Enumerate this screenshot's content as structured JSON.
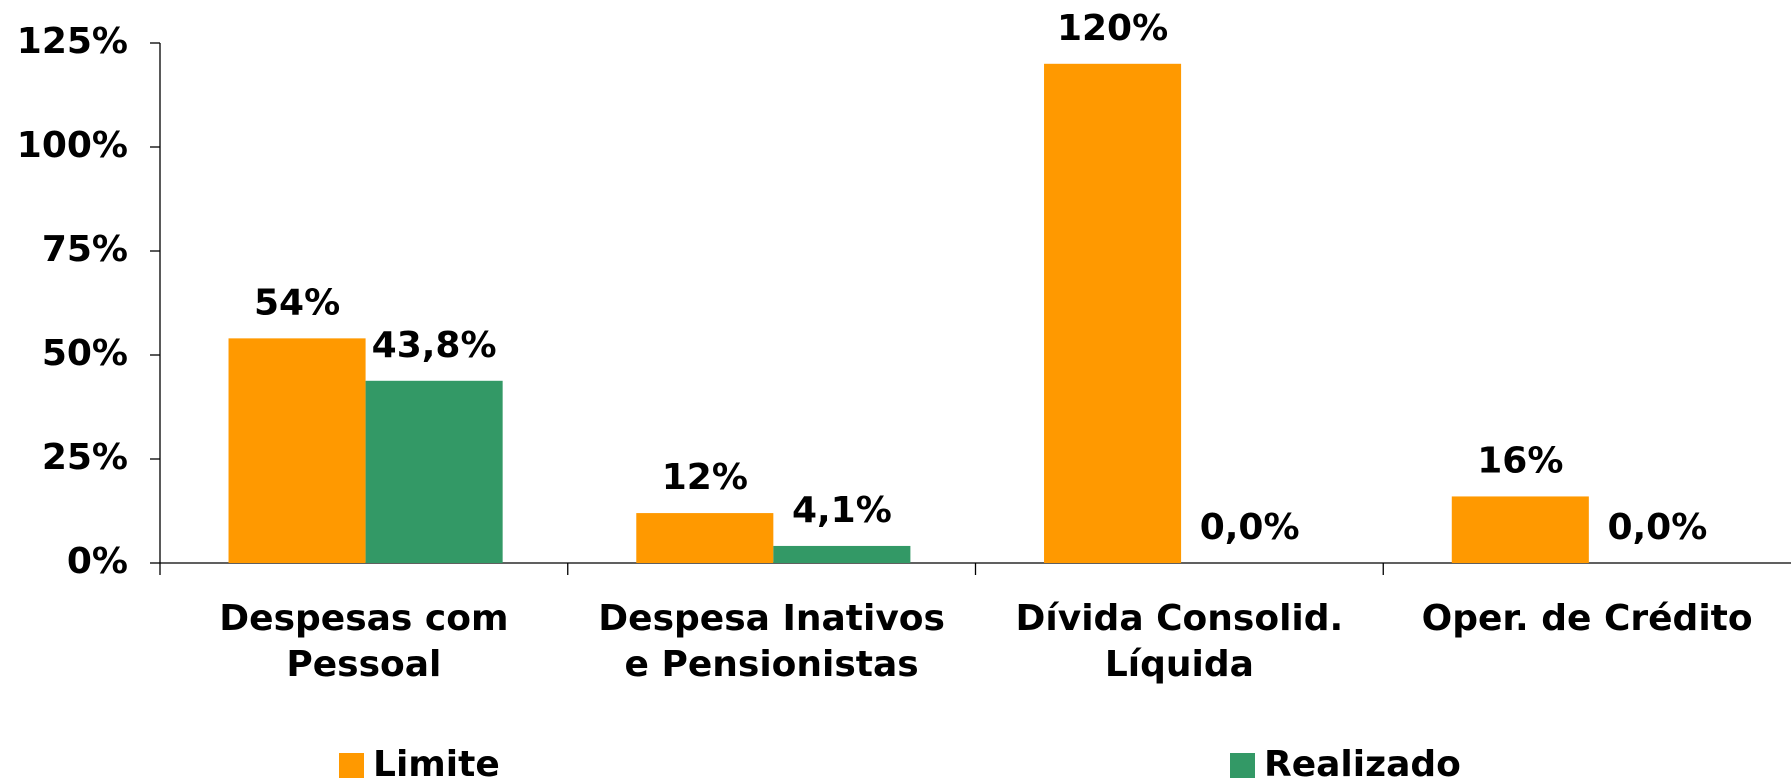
{
  "chart_data": {
    "type": "bar",
    "categories": [
      "Despesas com\nPessoal",
      "Despesa Inativos\ne Pensionistas",
      "Dívida Consolid.\nLíquida",
      "Oper. de Crédito"
    ],
    "series": [
      {
        "name": "Limite",
        "color": "#ff9900",
        "values": [
          54,
          12,
          120,
          16
        ],
        "value_labels": [
          "54%",
          "12%",
          "120%",
          "16%"
        ]
      },
      {
        "name": "Realizado",
        "color": "#339966",
        "values": [
          43.8,
          4.1,
          0,
          0
        ],
        "value_labels": [
          "43,8%",
          "4,1%",
          "0,0%",
          "0,0%"
        ]
      }
    ],
    "ylim": [
      0,
      125
    ],
    "yticks": [
      {
        "value": 0,
        "label": "0%"
      },
      {
        "value": 25,
        "label": "25%"
      },
      {
        "value": 50,
        "label": "50%"
      },
      {
        "value": 75,
        "label": "75%"
      },
      {
        "value": 100,
        "label": "100%"
      },
      {
        "value": 125,
        "label": "125%"
      }
    ],
    "legend": "bottom"
  }
}
